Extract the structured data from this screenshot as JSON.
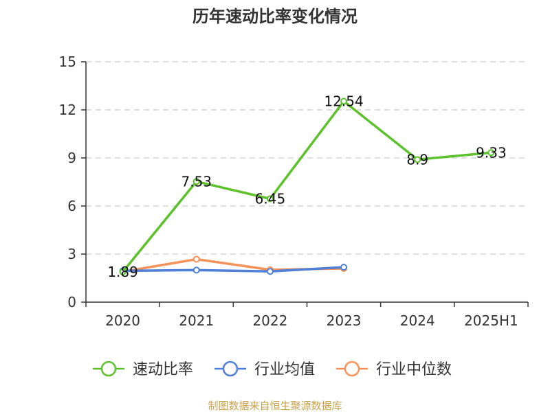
{
  "chart_data": {
    "type": "line",
    "title": "历年速动比率变化情况",
    "categories": [
      "2020",
      "2021",
      "2022",
      "2023",
      "2024",
      "2025H1"
    ],
    "ylim": [
      0,
      15
    ],
    "yticks": [
      0,
      3,
      6,
      9,
      12,
      15
    ],
    "grid": true,
    "legend_position": "bottom",
    "series": [
      {
        "name": "速动比率",
        "color": "#5cc12b",
        "values": [
          1.89,
          7.53,
          6.45,
          12.54,
          8.9,
          9.33
        ],
        "labels": [
          "1.89",
          "7.53",
          "6.45",
          "12.54",
          "8.9",
          "9.33"
        ]
      },
      {
        "name": "行业均值",
        "color": "#4f7fd6",
        "values": [
          1.95,
          2.0,
          1.92,
          2.18,
          null,
          null
        ]
      },
      {
        "name": "行业中位数",
        "color": "#f4925a",
        "values": [
          1.9,
          2.68,
          2.02,
          2.1,
          null,
          null
        ]
      }
    ]
  },
  "source": "制图数据来自恒生聚源数据库"
}
